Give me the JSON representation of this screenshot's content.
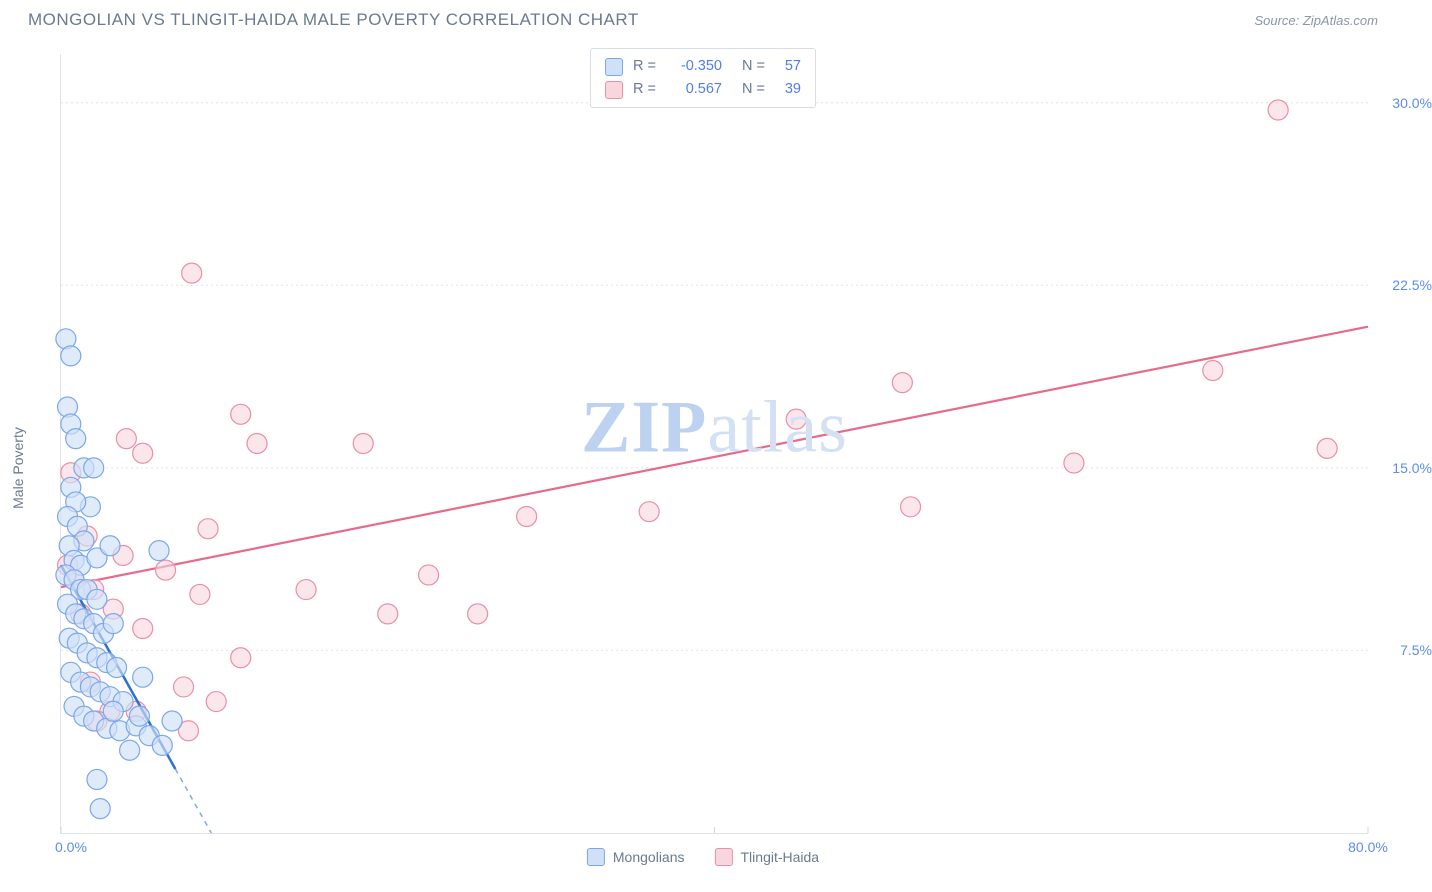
{
  "header": {
    "title": "MONGOLIAN VS TLINGIT-HAIDA MALE POVERTY CORRELATION CHART",
    "source_prefix": "Source: ",
    "source": "ZipAtlas.com"
  },
  "watermark": {
    "zip": "ZIP",
    "atlas": "atlas"
  },
  "chart": {
    "type": "scatter-regression",
    "ylabel": "Male Poverty",
    "background_color": "#ffffff",
    "grid_color": "#e1e5eb",
    "xlim": [
      0,
      80
    ],
    "ylim": [
      0,
      32
    ],
    "x_ticks": [
      {
        "v": 0,
        "label": "0.0%",
        "origin": true
      },
      {
        "v": 40,
        "label": ""
      },
      {
        "v": 80,
        "label": "80.0%"
      }
    ],
    "y_ticks": [
      {
        "v": 7.5,
        "label": "7.5%"
      },
      {
        "v": 15.0,
        "label": "15.0%"
      },
      {
        "v": 22.5,
        "label": "22.5%"
      },
      {
        "v": 30.0,
        "label": "30.0%"
      }
    ],
    "series": {
      "mongolians": {
        "label": "Mongolians",
        "fill": "#cfe0f7",
        "stroke": "#7ba7e8",
        "line_color": "#2f6fd0",
        "r_value": "-0.350",
        "n_value": "57",
        "marker_radius": 10,
        "marker_opacity": 0.65,
        "reg_line": {
          "x1": 0,
          "y1": 11.0,
          "x2": 9.2,
          "y2": 0,
          "dash_after_x": 7.0
        },
        "points": [
          [
            0.3,
            20.3
          ],
          [
            0.6,
            19.6
          ],
          [
            0.4,
            17.5
          ],
          [
            0.6,
            16.8
          ],
          [
            0.9,
            16.2
          ],
          [
            1.4,
            15.0
          ],
          [
            2.0,
            15.0
          ],
          [
            1.8,
            13.4
          ],
          [
            0.6,
            14.2
          ],
          [
            0.9,
            13.6
          ],
          [
            0.4,
            13.0
          ],
          [
            1.0,
            12.6
          ],
          [
            1.4,
            12.0
          ],
          [
            0.5,
            11.8
          ],
          [
            0.8,
            11.2
          ],
          [
            1.2,
            11.0
          ],
          [
            2.2,
            11.3
          ],
          [
            3.0,
            11.8
          ],
          [
            6.0,
            11.6
          ],
          [
            0.3,
            10.6
          ],
          [
            0.8,
            10.4
          ],
          [
            1.2,
            10.0
          ],
          [
            1.6,
            10.0
          ],
          [
            2.2,
            9.6
          ],
          [
            0.4,
            9.4
          ],
          [
            0.9,
            9.0
          ],
          [
            1.4,
            8.8
          ],
          [
            2.0,
            8.6
          ],
          [
            2.6,
            8.2
          ],
          [
            3.2,
            8.6
          ],
          [
            0.5,
            8.0
          ],
          [
            1.0,
            7.8
          ],
          [
            1.6,
            7.4
          ],
          [
            2.2,
            7.2
          ],
          [
            2.8,
            7.0
          ],
          [
            3.4,
            6.8
          ],
          [
            0.6,
            6.6
          ],
          [
            1.2,
            6.2
          ],
          [
            1.8,
            6.0
          ],
          [
            2.4,
            5.8
          ],
          [
            3.0,
            5.6
          ],
          [
            3.8,
            5.4
          ],
          [
            0.8,
            5.2
          ],
          [
            1.4,
            4.8
          ],
          [
            2.0,
            4.6
          ],
          [
            2.8,
            4.3
          ],
          [
            3.6,
            4.2
          ],
          [
            4.6,
            4.4
          ],
          [
            5.4,
            4.0
          ],
          [
            6.2,
            3.6
          ],
          [
            4.2,
            3.4
          ],
          [
            6.8,
            4.6
          ],
          [
            2.2,
            2.2
          ],
          [
            2.4,
            1.0
          ],
          [
            4.8,
            4.8
          ],
          [
            3.2,
            5.0
          ],
          [
            5.0,
            6.4
          ]
        ]
      },
      "tlingit": {
        "label": "Tlingit-Haida",
        "fill": "#f7d6dd",
        "stroke": "#e98fa6",
        "line_color": "#e86a8b",
        "r_value": "0.567",
        "n_value": "39",
        "marker_radius": 10,
        "marker_opacity": 0.6,
        "reg_line": {
          "x1": 0,
          "y1": 10.1,
          "x2": 80,
          "y2": 20.8
        },
        "points": [
          [
            74.5,
            29.7
          ],
          [
            8.0,
            23.0
          ],
          [
            70.5,
            19.0
          ],
          [
            51.5,
            18.5
          ],
          [
            11.0,
            17.2
          ],
          [
            45.0,
            17.0
          ],
          [
            4.0,
            16.2
          ],
          [
            18.5,
            16.0
          ],
          [
            12.0,
            16.0
          ],
          [
            62.0,
            15.2
          ],
          [
            77.5,
            15.8
          ],
          [
            5.0,
            15.6
          ],
          [
            36.0,
            13.2
          ],
          [
            28.5,
            13.0
          ],
          [
            52.0,
            13.4
          ],
          [
            9.0,
            12.5
          ],
          [
            22.5,
            10.6
          ],
          [
            0.8,
            10.4
          ],
          [
            2.0,
            10.0
          ],
          [
            8.5,
            9.8
          ],
          [
            3.2,
            9.2
          ],
          [
            20.0,
            9.0
          ],
          [
            25.5,
            9.0
          ],
          [
            5.0,
            8.4
          ],
          [
            11.0,
            7.2
          ],
          [
            7.5,
            6.0
          ],
          [
            1.8,
            6.2
          ],
          [
            9.5,
            5.4
          ],
          [
            4.6,
            5.0
          ],
          [
            3.0,
            5.0
          ],
          [
            7.8,
            4.2
          ],
          [
            2.2,
            4.6
          ],
          [
            0.6,
            14.8
          ],
          [
            1.6,
            12.2
          ],
          [
            3.8,
            11.4
          ],
          [
            1.2,
            9.0
          ],
          [
            6.4,
            10.8
          ],
          [
            15.0,
            10.0
          ],
          [
            0.4,
            11.0
          ]
        ]
      }
    },
    "legend_bottom": [
      "mongolians",
      "tlingit"
    ],
    "stats_box": [
      "mongolians",
      "tlingit"
    ]
  }
}
